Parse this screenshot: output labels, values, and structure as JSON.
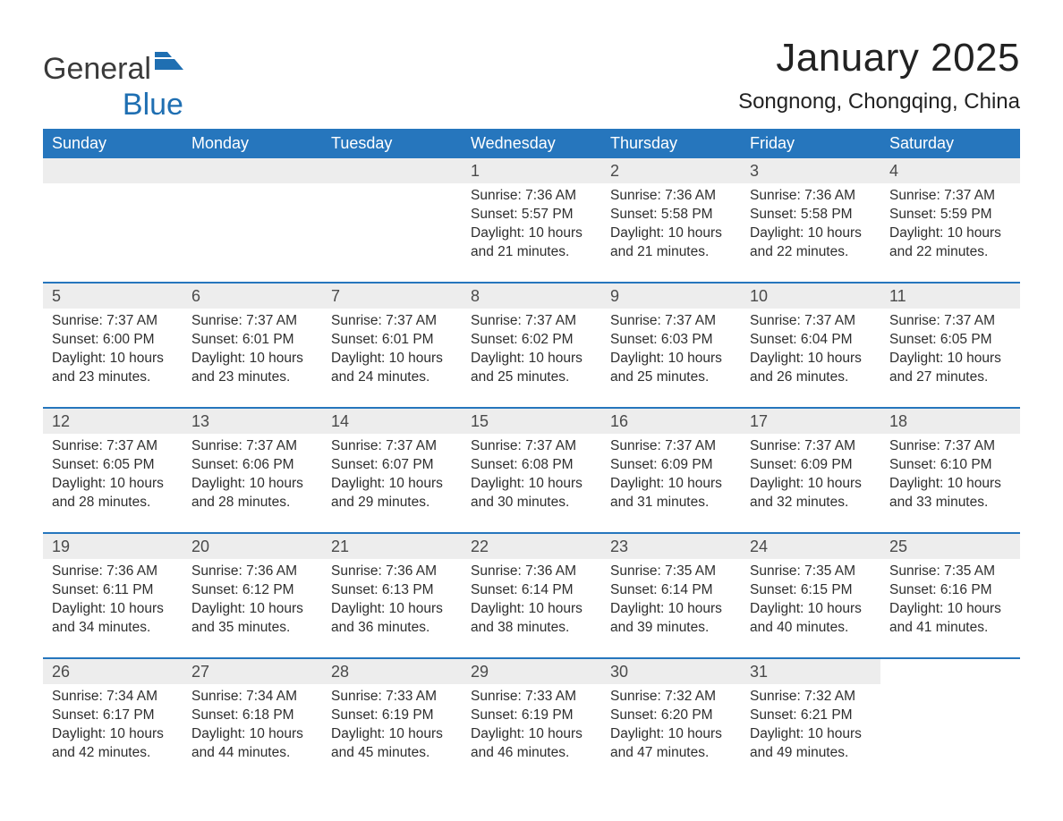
{
  "brand": {
    "general": "General",
    "blue": "Blue"
  },
  "title": "January 2025",
  "location": "Songnong, Chongqing, China",
  "colors": {
    "header_bg": "#2676bd",
    "header_text": "#ffffff",
    "daynum_bg": "#ededed",
    "row_divider": "#2676bd",
    "body_text": "#2e2e2e",
    "logo_blue": "#1f6fb2",
    "background": "#ffffff"
  },
  "weekdays": [
    "Sunday",
    "Monday",
    "Tuesday",
    "Wednesday",
    "Thursday",
    "Friday",
    "Saturday"
  ],
  "layout": {
    "weeks": 5,
    "cols": 7,
    "first_day_col": 3,
    "days_in_month": 31
  },
  "labels": {
    "sunrise_prefix": "Sunrise: ",
    "sunset_prefix": "Sunset: ",
    "daylight_prefix": "Daylight: "
  },
  "days": {
    "1": {
      "sunrise": "7:36 AM",
      "sunset": "5:57 PM",
      "daylight": "10 hours and 21 minutes."
    },
    "2": {
      "sunrise": "7:36 AM",
      "sunset": "5:58 PM",
      "daylight": "10 hours and 21 minutes."
    },
    "3": {
      "sunrise": "7:36 AM",
      "sunset": "5:58 PM",
      "daylight": "10 hours and 22 minutes."
    },
    "4": {
      "sunrise": "7:37 AM",
      "sunset": "5:59 PM",
      "daylight": "10 hours and 22 minutes."
    },
    "5": {
      "sunrise": "7:37 AM",
      "sunset": "6:00 PM",
      "daylight": "10 hours and 23 minutes."
    },
    "6": {
      "sunrise": "7:37 AM",
      "sunset": "6:01 PM",
      "daylight": "10 hours and 23 minutes."
    },
    "7": {
      "sunrise": "7:37 AM",
      "sunset": "6:01 PM",
      "daylight": "10 hours and 24 minutes."
    },
    "8": {
      "sunrise": "7:37 AM",
      "sunset": "6:02 PM",
      "daylight": "10 hours and 25 minutes."
    },
    "9": {
      "sunrise": "7:37 AM",
      "sunset": "6:03 PM",
      "daylight": "10 hours and 25 minutes."
    },
    "10": {
      "sunrise": "7:37 AM",
      "sunset": "6:04 PM",
      "daylight": "10 hours and 26 minutes."
    },
    "11": {
      "sunrise": "7:37 AM",
      "sunset": "6:05 PM",
      "daylight": "10 hours and 27 minutes."
    },
    "12": {
      "sunrise": "7:37 AM",
      "sunset": "6:05 PM",
      "daylight": "10 hours and 28 minutes."
    },
    "13": {
      "sunrise": "7:37 AM",
      "sunset": "6:06 PM",
      "daylight": "10 hours and 28 minutes."
    },
    "14": {
      "sunrise": "7:37 AM",
      "sunset": "6:07 PM",
      "daylight": "10 hours and 29 minutes."
    },
    "15": {
      "sunrise": "7:37 AM",
      "sunset": "6:08 PM",
      "daylight": "10 hours and 30 minutes."
    },
    "16": {
      "sunrise": "7:37 AM",
      "sunset": "6:09 PM",
      "daylight": "10 hours and 31 minutes."
    },
    "17": {
      "sunrise": "7:37 AM",
      "sunset": "6:09 PM",
      "daylight": "10 hours and 32 minutes."
    },
    "18": {
      "sunrise": "7:37 AM",
      "sunset": "6:10 PM",
      "daylight": "10 hours and 33 minutes."
    },
    "19": {
      "sunrise": "7:36 AM",
      "sunset": "6:11 PM",
      "daylight": "10 hours and 34 minutes."
    },
    "20": {
      "sunrise": "7:36 AM",
      "sunset": "6:12 PM",
      "daylight": "10 hours and 35 minutes."
    },
    "21": {
      "sunrise": "7:36 AM",
      "sunset": "6:13 PM",
      "daylight": "10 hours and 36 minutes."
    },
    "22": {
      "sunrise": "7:36 AM",
      "sunset": "6:14 PM",
      "daylight": "10 hours and 38 minutes."
    },
    "23": {
      "sunrise": "7:35 AM",
      "sunset": "6:14 PM",
      "daylight": "10 hours and 39 minutes."
    },
    "24": {
      "sunrise": "7:35 AM",
      "sunset": "6:15 PM",
      "daylight": "10 hours and 40 minutes."
    },
    "25": {
      "sunrise": "7:35 AM",
      "sunset": "6:16 PM",
      "daylight": "10 hours and 41 minutes."
    },
    "26": {
      "sunrise": "7:34 AM",
      "sunset": "6:17 PM",
      "daylight": "10 hours and 42 minutes."
    },
    "27": {
      "sunrise": "7:34 AM",
      "sunset": "6:18 PM",
      "daylight": "10 hours and 44 minutes."
    },
    "28": {
      "sunrise": "7:33 AM",
      "sunset": "6:19 PM",
      "daylight": "10 hours and 45 minutes."
    },
    "29": {
      "sunrise": "7:33 AM",
      "sunset": "6:19 PM",
      "daylight": "10 hours and 46 minutes."
    },
    "30": {
      "sunrise": "7:32 AM",
      "sunset": "6:20 PM",
      "daylight": "10 hours and 47 minutes."
    },
    "31": {
      "sunrise": "7:32 AM",
      "sunset": "6:21 PM",
      "daylight": "10 hours and 49 minutes."
    }
  }
}
